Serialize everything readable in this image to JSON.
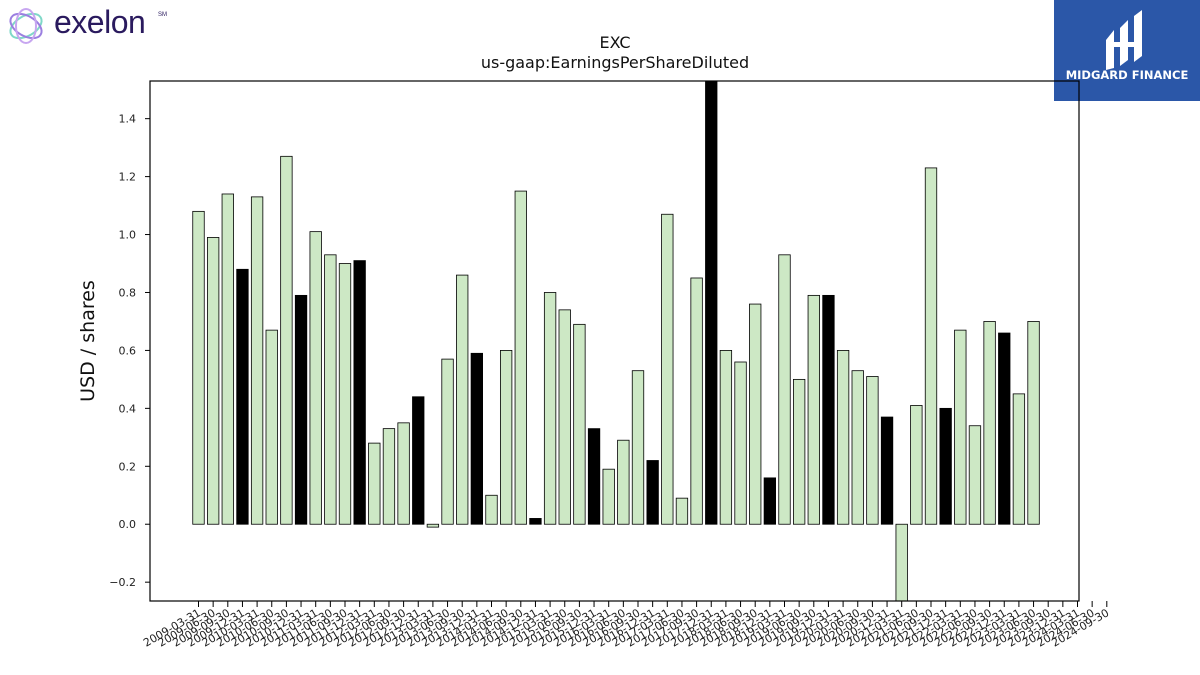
{
  "brand": {
    "left_logo_text": "exelon",
    "left_logo_mark": "SM",
    "right_logo_text": "MIDGARD FINANCE",
    "colors": {
      "exelon_text": "#2a1a5e",
      "midgard_bg": "#2b57a8"
    }
  },
  "chart_data": {
    "type": "bar",
    "title": "EXC",
    "subtitle": "us-gaap:EarningsPerShareDiluted",
    "xlabel": "",
    "ylabel": "USD / shares",
    "ylim": [
      -0.265,
      1.53
    ],
    "yticks": [
      -0.2,
      0.0,
      0.2,
      0.4,
      0.6,
      0.8,
      1.0,
      1.2,
      1.4
    ],
    "ytick_labels": [
      "−0.2",
      "0.0",
      "0.2",
      "0.4",
      "0.6",
      "0.8",
      "1.0",
      "1.2",
      "1.4"
    ],
    "grid": false,
    "colors": {
      "quarter": "#cde8c5",
      "annual": "#000000",
      "edge": "#000000"
    },
    "categories": [
      "2009-03-31",
      "2009-06-30",
      "2009-09-30",
      "2009-12-31",
      "2010-03-31",
      "2010-06-30",
      "2010-09-30",
      "2010-12-31",
      "2011-03-31",
      "2011-06-30",
      "2011-09-30",
      "2011-12-31",
      "2012-03-31",
      "2012-06-30",
      "2012-09-30",
      "2012-12-31",
      "2013-03-31",
      "2013-06-30",
      "2013-09-30",
      "2013-12-31",
      "2014-03-31",
      "2014-06-30",
      "2014-09-30",
      "2014-12-31",
      "2015-03-31",
      "2015-06-30",
      "2015-09-30",
      "2015-12-31",
      "2016-03-31",
      "2016-06-30",
      "2016-09-30",
      "2016-12-31",
      "2017-03-31",
      "2017-06-30",
      "2017-09-30",
      "2017-12-31",
      "2018-03-31",
      "2018-06-30",
      "2018-09-30",
      "2018-12-31",
      "2019-03-31",
      "2019-06-30",
      "2019-09-30",
      "2019-12-31",
      "2020-03-31",
      "2020-06-30",
      "2020-09-30",
      "2020-12-31",
      "2021-03-31",
      "2021-06-30",
      "2021-09-30",
      "2021-12-31",
      "2022-03-31",
      "2022-06-30",
      "2022-09-30",
      "2022-12-31",
      "2023-03-31",
      "2023-06-30",
      "2023-09-30",
      "2023-12-31",
      "2024-03-31",
      "2024-06-30",
      "2024-09-30"
    ],
    "values": [
      1.08,
      0.99,
      1.14,
      0.88,
      1.13,
      0.67,
      1.27,
      0.79,
      1.01,
      0.93,
      0.9,
      0.91,
      0.28,
      0.33,
      0.35,
      0.44,
      -0.01,
      0.57,
      0.86,
      0.59,
      0.1,
      0.6,
      1.15,
      0.02,
      0.8,
      0.74,
      0.69,
      0.33,
      0.19,
      0.29,
      0.53,
      0.22,
      1.07,
      0.09,
      0.85,
      1.6,
      0.6,
      0.56,
      0.76,
      0.16,
      0.93,
      0.5,
      0.79,
      0.79,
      0.6,
      0.53,
      0.51,
      0.37,
      -0.3,
      0.41,
      1.23,
      0.4,
      0.67,
      0.34,
      0.7,
      0.66,
      0.45,
      0.7,
      null,
      null,
      null,
      null,
      null
    ],
    "annual": [
      false,
      false,
      false,
      true,
      false,
      false,
      false,
      true,
      false,
      false,
      false,
      true,
      false,
      false,
      false,
      true,
      false,
      false,
      false,
      true,
      false,
      false,
      false,
      true,
      false,
      false,
      false,
      true,
      false,
      false,
      false,
      true,
      false,
      false,
      false,
      true,
      false,
      false,
      false,
      true,
      false,
      false,
      false,
      true,
      false,
      false,
      false,
      true,
      false,
      false,
      false,
      true,
      false,
      false,
      false,
      true,
      false,
      false,
      false,
      false,
      false,
      false,
      false
    ]
  }
}
